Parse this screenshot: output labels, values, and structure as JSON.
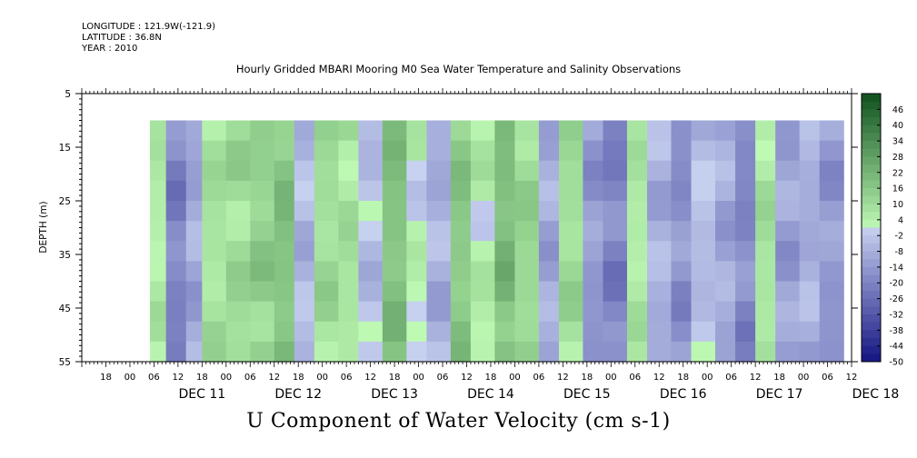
{
  "header": {
    "longitude": "LONGITUDE : 121.9W(-121.9)",
    "latitude": "LATITUDE : 36.8N",
    "year": "YEAR : 2010",
    "title": "Hourly Gridded MBARI Mooring M0 Sea Water Temperature and Salinity Observations",
    "bottom_label": "U Component of Water Velocity (cm s-1)"
  },
  "chart_data": {
    "type": "heatmap",
    "ylabel": "DEPTH (m)",
    "ylim": [
      5,
      55
    ],
    "y_inverted": true,
    "y_ticks": [
      5,
      15,
      25,
      35,
      45,
      55
    ],
    "data_depth_range": [
      10,
      55
    ],
    "x_range_hours": [
      -30,
      162
    ],
    "x_data_start_hour": -13,
    "x_hour_ticks": [
      "18",
      "00",
      "06",
      "12",
      "18",
      "00",
      "06",
      "12",
      "18",
      "00",
      "06",
      "12",
      "18",
      "00",
      "06",
      "12",
      "18",
      "00",
      "06",
      "12",
      "18",
      "00",
      "06",
      "12",
      "18",
      "00",
      "06",
      "12",
      "18",
      "00",
      "06",
      "12"
    ],
    "x_date_labels": [
      "DEC 11",
      "DEC 12",
      "DEC 13",
      "DEC 14",
      "DEC 15",
      "DEC 16",
      "DEC 17",
      "DEC 18"
    ],
    "colorbar_levels": [
      "46",
      "40",
      "34",
      "28",
      "22",
      "16",
      "10",
      "4",
      "-2",
      "-8",
      "-14",
      "-20",
      "-26",
      "-32",
      "-38",
      "-44",
      "-50"
    ],
    "colorbar_range": [
      -50,
      52
    ],
    "column_profile": [
      {
        "hour": -13,
        "v": 5
      },
      {
        "hour": -9,
        "v": -20
      },
      {
        "hour": -4,
        "v": -10
      },
      {
        "hour": 0,
        "v": 8
      },
      {
        "hour": 6,
        "v": 10
      },
      {
        "hour": 12,
        "v": 14
      },
      {
        "hour": 18,
        "v": 18
      },
      {
        "hour": 23,
        "v": -6
      },
      {
        "hour": 28,
        "v": 10
      },
      {
        "hour": 34,
        "v": 8
      },
      {
        "hour": 39,
        "v": -4
      },
      {
        "hour": 45,
        "v": 18
      },
      {
        "hour": 51,
        "v": 2
      },
      {
        "hour": 56,
        "v": -8
      },
      {
        "hour": 62,
        "v": 16
      },
      {
        "hour": 67,
        "v": 4
      },
      {
        "hour": 73,
        "v": 20
      },
      {
        "hour": 78,
        "v": 12
      },
      {
        "hour": 84,
        "v": -10
      },
      {
        "hour": 89,
        "v": 10
      },
      {
        "hour": 95,
        "v": -14
      },
      {
        "hour": 100,
        "v": -20
      },
      {
        "hour": 106,
        "v": 6
      },
      {
        "hour": 111,
        "v": -8
      },
      {
        "hour": 117,
        "v": -16
      },
      {
        "hour": 122,
        "v": -4
      },
      {
        "hour": 128,
        "v": -10
      },
      {
        "hour": 133,
        "v": -18
      },
      {
        "hour": 138,
        "v": 8
      },
      {
        "hour": 143,
        "v": -12
      },
      {
        "hour": 149,
        "v": -8
      },
      {
        "hour": 154,
        "v": -14
      },
      {
        "hour": 160,
        "v": -10
      }
    ]
  }
}
